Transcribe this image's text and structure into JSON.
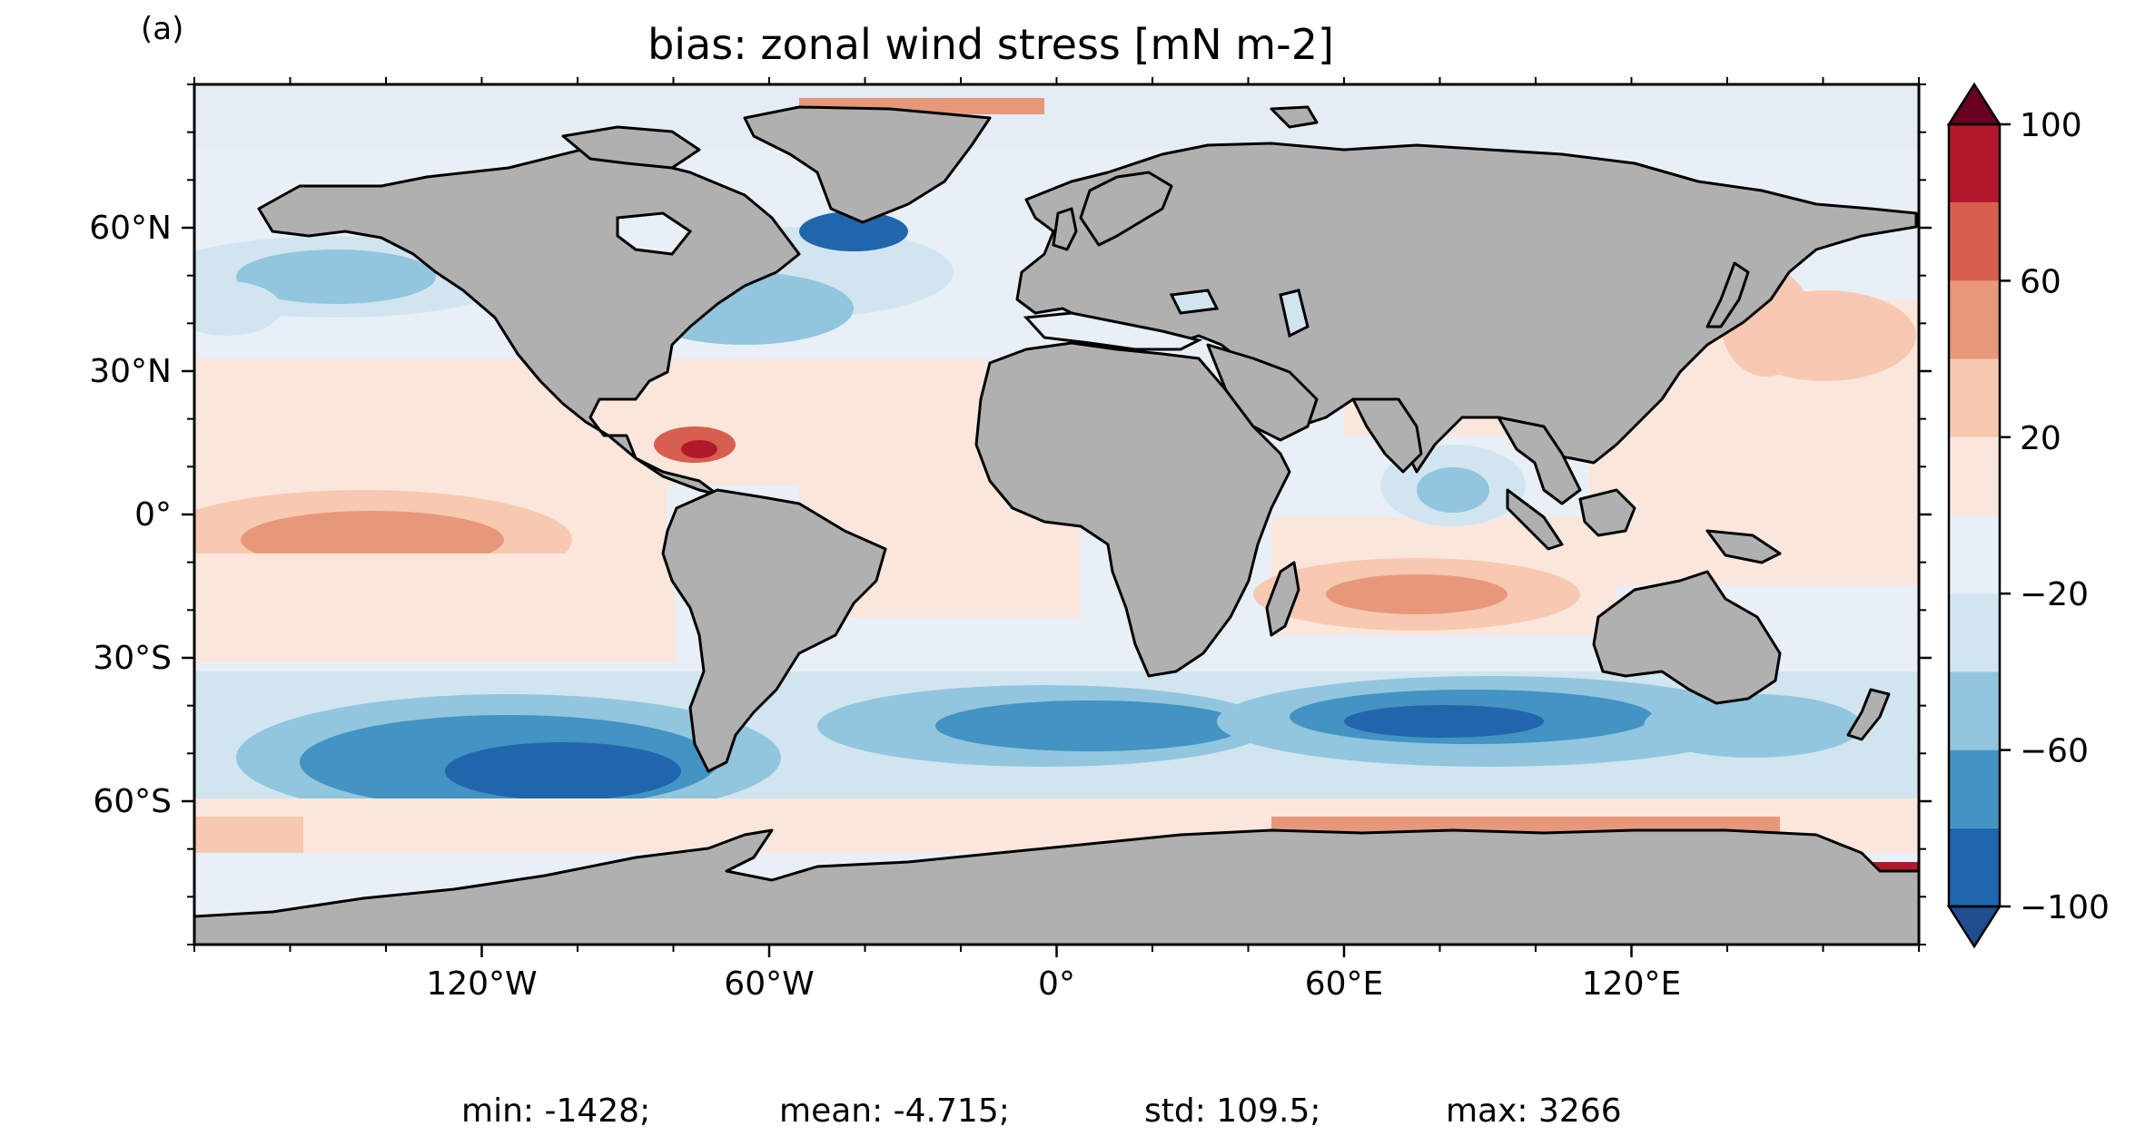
{
  "panel_label": "(a)",
  "title": "bias: zonal wind stress [mN m-2]",
  "map": {
    "projection": "PlateCarree",
    "lon_ticks": [
      "120°W",
      "60°W",
      "0°",
      "60°E",
      "120°E"
    ],
    "lat_ticks": [
      "60°N",
      "30°N",
      "0°",
      "30°S",
      "60°S"
    ],
    "land_color": "#b0b0b0",
    "coastline_color": "#000000"
  },
  "colorbar": {
    "cmap": "RdBu_r",
    "extend": "both",
    "levels": [
      -100,
      -80,
      -60,
      -40,
      -20,
      0,
      20,
      40,
      60,
      80,
      100
    ],
    "tick_labels": [
      "100",
      "60",
      "20",
      "−20",
      "−60",
      "−100"
    ],
    "colors": [
      "#1f4e8f",
      "#2166ac",
      "#4393c3",
      "#92c5de",
      "#d1e5f0",
      "#e8eff6",
      "#fbe6dc",
      "#f7c9b0",
      "#e8987a",
      "#d6604d",
      "#b2182b",
      "#67001f"
    ]
  },
  "stats": {
    "min": "min: -1428;",
    "mean": "mean: -4.715;",
    "std": "std: 109.5;",
    "max": "max: 3266"
  }
}
